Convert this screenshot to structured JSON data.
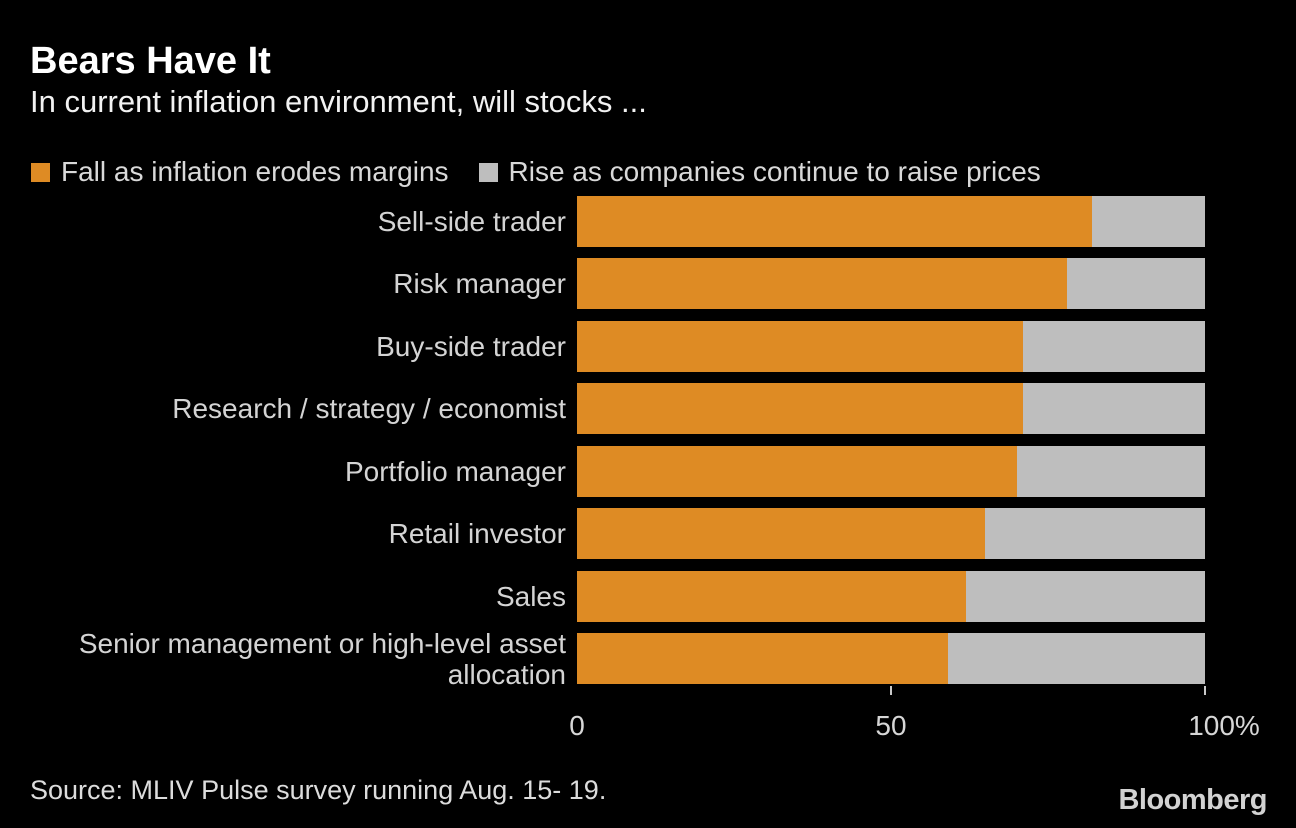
{
  "header": {
    "title": "Bears Have It",
    "subtitle": "In current inflation environment, will stocks ..."
  },
  "legend": [
    {
      "label": "Fall as inflation erodes margins",
      "color": "#DE8B24"
    },
    {
      "label": "Rise as companies continue to raise prices",
      "color": "#BEBEBE"
    }
  ],
  "chart_data": {
    "type": "bar",
    "orientation": "horizontal",
    "stacked": true,
    "title": "Bears Have It",
    "subtitle": "In current inflation environment, will stocks ...",
    "categories": [
      "Sell-side trader",
      "Risk manager",
      "Buy-side trader",
      "Research / strategy / economist",
      "Portfolio manager",
      "Retail investor",
      "Sales",
      "Senior management or high-level asset allocation"
    ],
    "series": [
      {
        "name": "Fall as inflation erodes margins",
        "color": "#DE8B24",
        "values": [
          82,
          78,
          71,
          71,
          70,
          65,
          62,
          59
        ]
      },
      {
        "name": "Rise as companies continue to raise prices",
        "color": "#BEBEBE",
        "values": [
          18,
          22,
          29,
          29,
          30,
          35,
          38,
          41
        ]
      }
    ],
    "xlabel": "",
    "ylabel": "",
    "xlim": [
      0,
      100
    ],
    "x_ticks": [
      {
        "value": 0,
        "label": "0",
        "tick": false
      },
      {
        "value": 50,
        "label": "50",
        "tick": true
      },
      {
        "value": 100,
        "label": "100%",
        "tick": true
      }
    ],
    "grid": false,
    "legend_position": "top"
  },
  "footer": {
    "source": "Source: MLIV Pulse survey running Aug. 15- 19.",
    "logo": "Bloomberg"
  },
  "colors": {
    "background": "#000000",
    "bar_orange": "#DE8B24",
    "bar_gray": "#BEBEBE",
    "title_text": "#FFFFFF",
    "label_text": "#D4D4D4"
  }
}
